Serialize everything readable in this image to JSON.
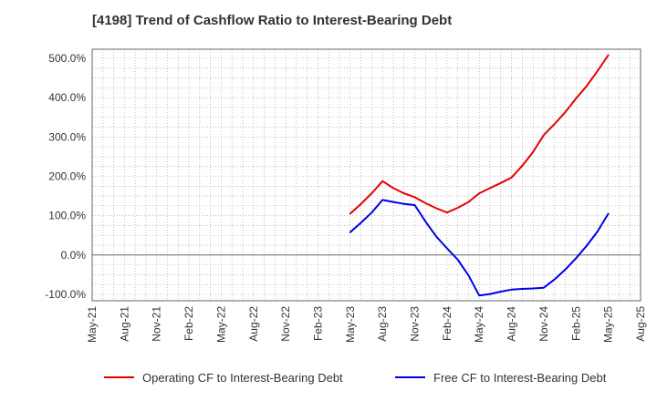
{
  "chart_data": {
    "type": "line",
    "title": "[4198]  Trend of Cashflow Ratio to Interest-Bearing Debt",
    "xlabel": "",
    "ylabel": "",
    "ylim": [
      -100,
      500
    ],
    "yticks": [
      "500.0%",
      "400.0%",
      "300.0%",
      "200.0%",
      "100.0%",
      "0.0%",
      "-100.0%"
    ],
    "ytick_values": [
      500,
      400,
      300,
      200,
      100,
      0,
      -100
    ],
    "x_tick_labels": [
      "May-21",
      "Aug-21",
      "Nov-21",
      "Feb-22",
      "May-22",
      "Aug-22",
      "Nov-22",
      "Feb-23",
      "May-23",
      "Aug-23",
      "Nov-23",
      "Feb-24",
      "May-24",
      "Aug-24",
      "Nov-24",
      "Feb-25",
      "May-25",
      "Aug-25"
    ],
    "x_month_range": [
      0,
      51
    ],
    "grid": true,
    "legend_position": "bottom",
    "series": [
      {
        "name": "Operating CF to Interest-Bearing Debt",
        "color": "#e60000",
        "x_months": [
          24,
          25,
          26,
          27,
          28,
          29,
          30,
          31,
          32,
          33,
          34,
          35,
          36,
          37,
          38,
          39,
          40,
          41,
          42,
          43,
          44,
          45,
          46,
          47,
          48
        ],
        "values": [
          105,
          130,
          157,
          188,
          170,
          157,
          147,
          132,
          119,
          108,
          120,
          135,
          157,
          170,
          183,
          197,
          227,
          262,
          305,
          333,
          363,
          398,
          430,
          468,
          508
        ]
      },
      {
        "name": "Free CF to Interest-Bearing Debt",
        "color": "#0000e6",
        "x_months": [
          24,
          25,
          26,
          27,
          28,
          29,
          30,
          31,
          32,
          33,
          34,
          35,
          36,
          37,
          38,
          39,
          40,
          41,
          42,
          43,
          44,
          45,
          46,
          47,
          48
        ],
        "values": [
          58,
          82,
          108,
          140,
          135,
          130,
          127,
          85,
          47,
          17,
          -12,
          -52,
          -103,
          -99,
          -93,
          -88,
          -86,
          -85,
          -83,
          -62,
          -37,
          -8,
          24,
          60,
          105
        ]
      }
    ]
  }
}
